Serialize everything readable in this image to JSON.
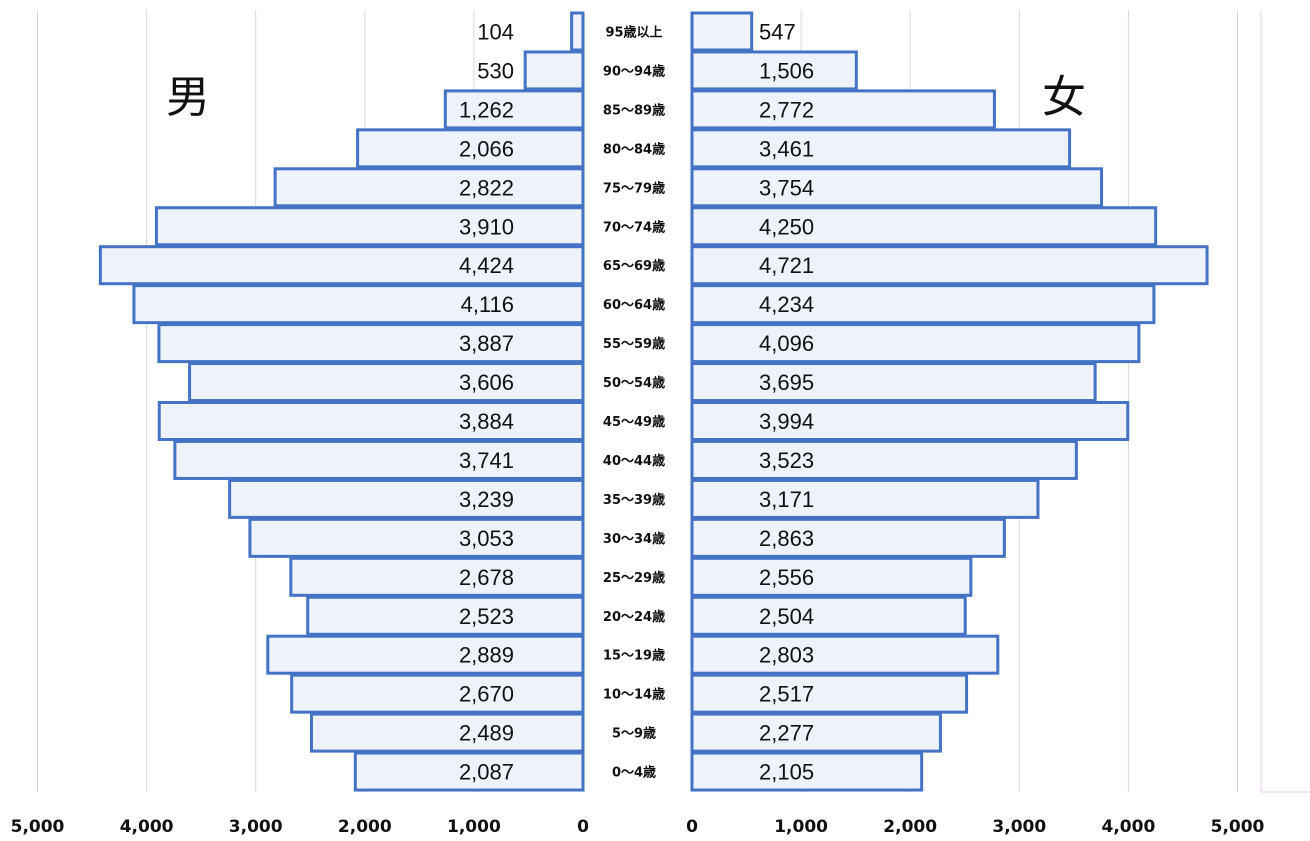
{
  "chart_data": {
    "type": "bar",
    "orientation": "horizontal-butterfly",
    "categories": [
      "95歳以上",
      "90～94歳",
      "85～89歳",
      "80～84歳",
      "75～79歳",
      "70～74歳",
      "65～69歳",
      "60～64歳",
      "55～59歳",
      "50～54歳",
      "45～49歳",
      "40～44歳",
      "35～39歳",
      "30～34歳",
      "25～29歳",
      "20～24歳",
      "15～19歳",
      "10～14歳",
      "5～9歳",
      "0～4歳"
    ],
    "series": [
      {
        "name": "男",
        "values": [
          104,
          530,
          1262,
          2066,
          2822,
          3910,
          4424,
          4116,
          3887,
          3606,
          3884,
          3741,
          3239,
          3053,
          2678,
          2523,
          2889,
          2670,
          2489,
          2087
        ]
      },
      {
        "name": "女",
        "values": [
          547,
          1506,
          2772,
          3461,
          3754,
          4250,
          4721,
          4234,
          4096,
          3695,
          3994,
          3523,
          3171,
          2863,
          2556,
          2504,
          2803,
          2517,
          2277,
          2105
        ]
      }
    ],
    "value_labels": {
      "male": [
        "104",
        "530",
        "1,262",
        "2,066",
        "2,822",
        "3,910",
        "4,424",
        "4,116",
        "3,887",
        "3,606",
        "3,884",
        "3,741",
        "3,239",
        "3,053",
        "2,678",
        "2,523",
        "2,889",
        "2,670",
        "2,489",
        "2,087"
      ],
      "female": [
        "547",
        "1,506",
        "2,772",
        "3,461",
        "3,754",
        "4,250",
        "4,721",
        "4,234",
        "4,096",
        "3,695",
        "3,994",
        "3,523",
        "3,171",
        "2,863",
        "2,556",
        "2,504",
        "2,803",
        "2,517",
        "2,277",
        "2,105"
      ]
    },
    "left_ticks": [
      "5,000",
      "4,000",
      "3,000",
      "2,000",
      "1,000",
      "0"
    ],
    "right_ticks": [
      "0",
      "1,000",
      "2,000",
      "3,000",
      "4,000",
      "5,000"
    ],
    "xlim": [
      0,
      5000
    ],
    "grid": true,
    "colors": {
      "bar_fill": "#eef3fb",
      "bar_stroke": "#4472c4",
      "grid": "#d9d9d9"
    }
  }
}
